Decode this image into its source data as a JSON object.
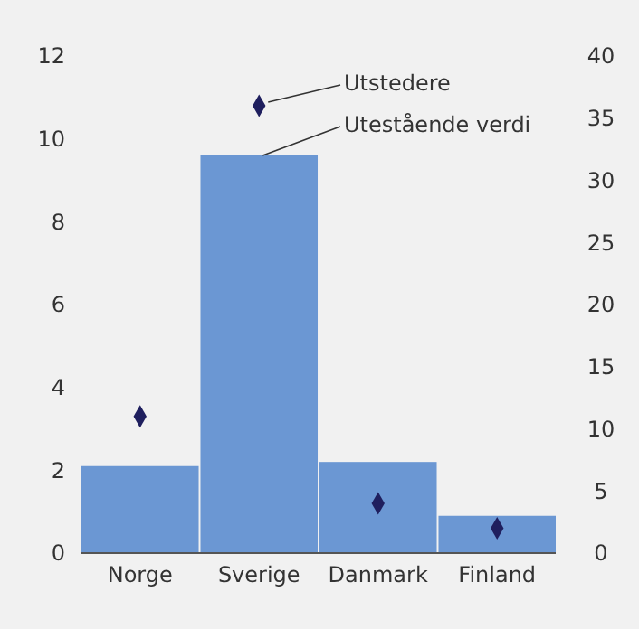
{
  "chart_data": {
    "type": "bar",
    "categories": [
      "Norge",
      "Sverige",
      "Danmark",
      "Finland"
    ],
    "series": [
      {
        "name": "Utestående verdi",
        "color": "#6b97d3",
        "values": [
          2.1,
          9.6,
          2.2,
          0.9
        ]
      },
      {
        "name": "Utstedere",
        "type": "scatter",
        "axis": "y2",
        "marker": "diamond",
        "color": "#1f1f5e",
        "values": [
          11,
          36,
          4,
          2
        ]
      }
    ],
    "ylim": [
      0,
      12
    ],
    "yticks": [
      0,
      2,
      4,
      6,
      8,
      10,
      12
    ],
    "y2lim": [
      0,
      40
    ],
    "y2ticks": [
      0,
      5,
      10,
      15,
      20,
      25,
      30,
      35,
      40
    ],
    "grid": false,
    "legend": false
  }
}
